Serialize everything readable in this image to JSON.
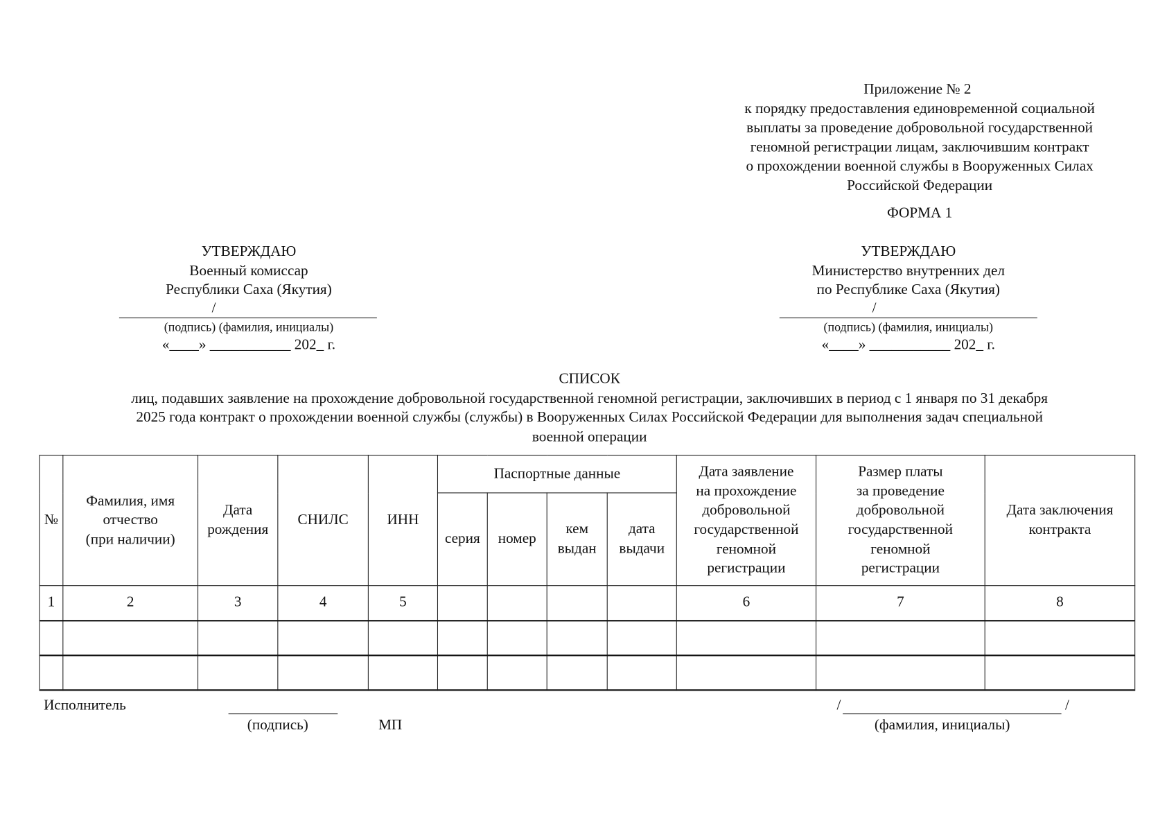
{
  "appendix": {
    "title": "Приложение № 2",
    "lines": [
      "к порядку предоставления единовременной социальной",
      "выплаты за проведение добровольной государственной",
      "геномной регистрации лицам, заключившим контракт",
      "о прохождении военной службы в Вооруженных Силах",
      "Российской Федерации"
    ],
    "form": "ФОРМА 1"
  },
  "approve_left": {
    "title": "УТВЕРЖДАЮ",
    "line1": "Военный комиссар",
    "line2": "Республики Саха (Якутия)",
    "slash": "/",
    "sign_caption": "(подпись) (фамилия, инициалы)",
    "date": "«____» ___________ 202_ г."
  },
  "approve_right": {
    "title": "УТВЕРЖДАЮ",
    "line1": "Министерство внутренних дел",
    "line2": "по Республике Саха (Якутия)",
    "slash": "/",
    "sign_caption": "(подпись) (фамилия, инициалы)",
    "date": "«____» ___________ 202_ г."
  },
  "list": {
    "title": "СПИСОК",
    "lines": [
      "лиц, подавших заявление на прохождение добровольной государственной геномной регистрации, заключивших в период с 1 января по 31 декабря",
      "2025 года контракт о прохождении военной службы (службы) в Вооруженных Силах Российской Федерации для выполнения задач специальной",
      "военной операции"
    ]
  },
  "table": {
    "headers": {
      "num": "№",
      "fio": [
        "Фамилия, имя",
        "отчество",
        "(при наличии)"
      ],
      "birth": [
        "Дата",
        "рождения"
      ],
      "snils": "СНИЛС",
      "inn": "ИНН",
      "passport": "Паспортные данные",
      "series": "серия",
      "number": "номер",
      "issued_by": [
        "кем",
        "выдан"
      ],
      "issue_date": [
        "дата",
        "выдачи"
      ],
      "application_date": [
        "Дата заявление",
        "на прохождение",
        "добровольной",
        "государственной",
        "геномной",
        "регистрации"
      ],
      "fee": [
        "Размер платы",
        "за проведение",
        "добровольной",
        "государственной",
        "геномной",
        "регистрации"
      ],
      "contract_date": [
        "Дата заключения",
        "контракта"
      ]
    },
    "numbering": [
      "1",
      "2",
      "3",
      "4",
      "5",
      "",
      "",
      "",
      "",
      "6",
      "7",
      "8"
    ],
    "empty_rows": 2
  },
  "footer": {
    "executor": "Исполнитель",
    "signature": "(подпись)",
    "stamp": "МП",
    "slash_left": "/",
    "slash_right": "/",
    "name_caption": "(фамилия, инициалы)"
  }
}
